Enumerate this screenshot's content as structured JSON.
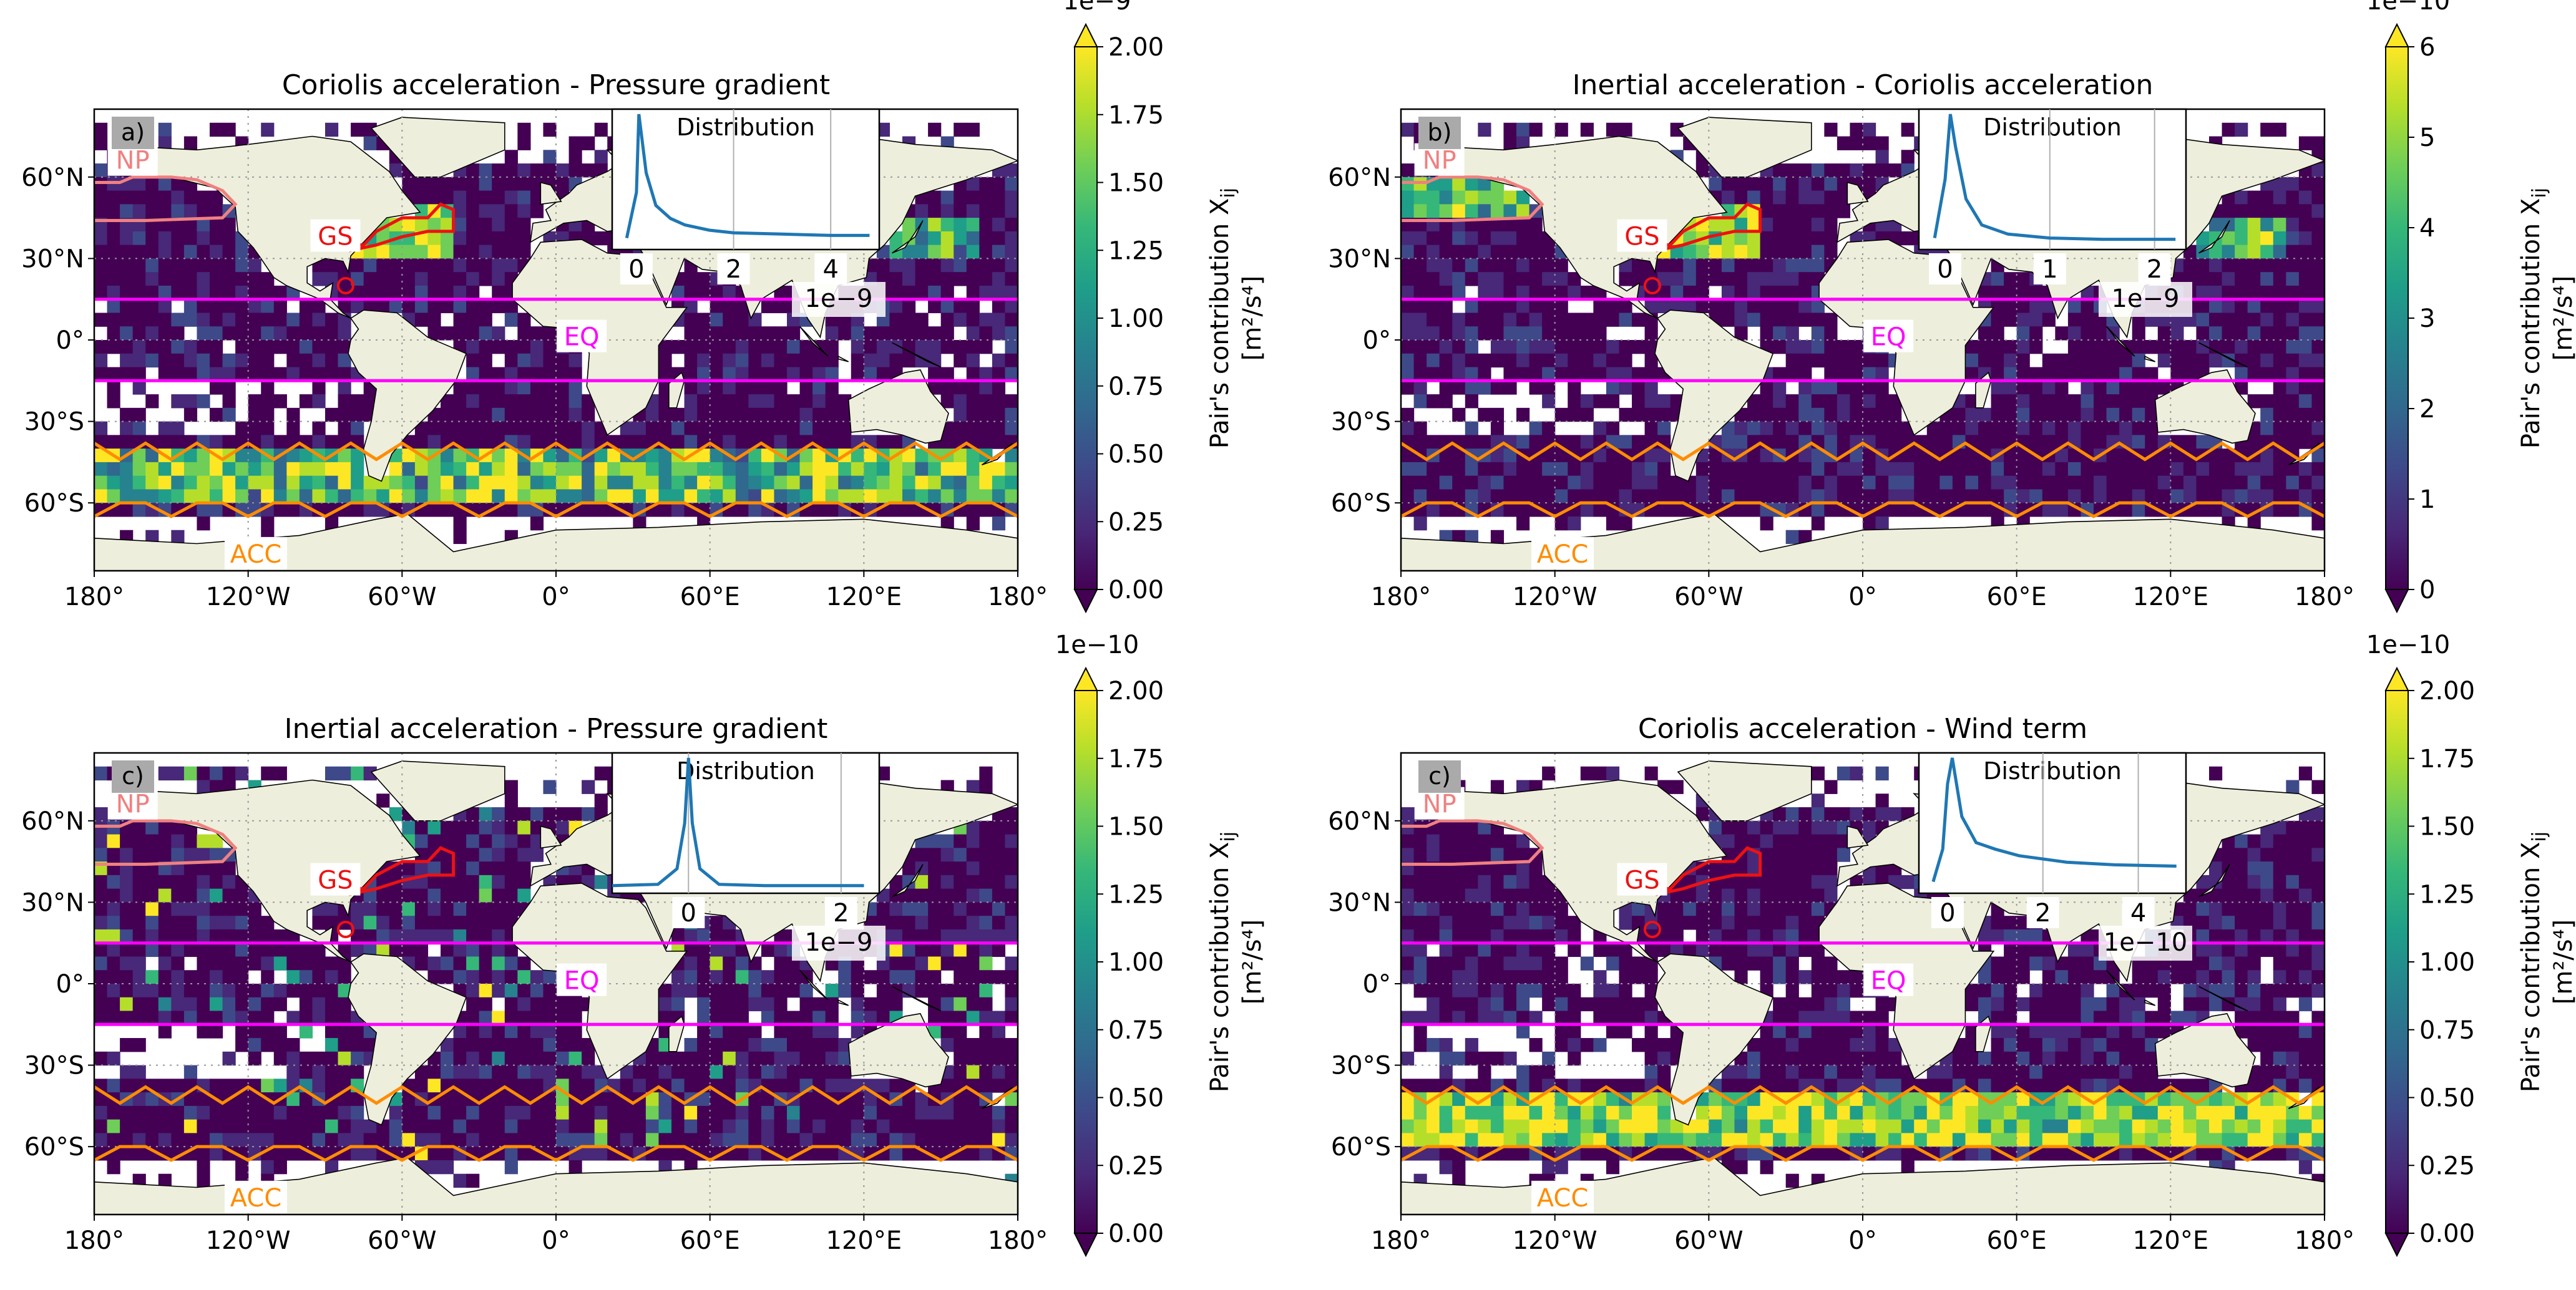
{
  "figure": {
    "colors": {
      "land": "#eeeedc",
      "ocean_empty": "#ffffff",
      "coast": "#000000",
      "grid": "#999999",
      "np_contour": "#f08080",
      "gs_contour": "#ee1111",
      "eq_lines": "#ff00ff",
      "acc_contour": "#ff8c00",
      "inset_line": "#1f77b4",
      "viridis": [
        "#440154",
        "#482878",
        "#3e4989",
        "#31688e",
        "#26828e",
        "#1f9e89",
        "#35b779",
        "#6ece58",
        "#b5de2b",
        "#fde725"
      ]
    },
    "region_labels": {
      "np": "NP",
      "gs": "GS",
      "eq": "EQ",
      "acc": "ACC"
    },
    "lon_ticks": [
      "180°",
      "120°W",
      "60°W",
      "0°",
      "60°E",
      "120°E",
      "180°"
    ],
    "lat_ticks": [
      "60°N",
      "30°N",
      "0°",
      "30°S",
      "60°S"
    ],
    "inset_title": "Distribution",
    "colorbar_label": "Pair's contribution X",
    "colorbar_label_sub": "ij",
    "colorbar_units": "[m²/s⁴]"
  },
  "chart_data": [
    {
      "type": "heatmap",
      "title": "Coriolis acceleration - Pressure gradient",
      "panel_label": "a)",
      "colorbar": {
        "ticks": [
          "0.00",
          "0.25",
          "0.50",
          "0.75",
          "1.00",
          "1.25",
          "1.50",
          "1.75",
          "2.00"
        ],
        "range": [
          0,
          2.0
        ],
        "exponent": "1e−9",
        "extend": "both"
      },
      "field_hotspots": [
        "gs",
        "acc",
        "kuroshio"
      ],
      "seed": 11,
      "inset": {
        "xticks": [
          "0",
          "2",
          "4"
        ],
        "xrange": [
          -0.5,
          5.0
        ],
        "multiplier": "1e−9",
        "gridlines_at": [
          2,
          4
        ],
        "curve": [
          [
            -0.2,
            0.05
          ],
          [
            0.0,
            0.4
          ],
          [
            0.05,
            1.0
          ],
          [
            0.2,
            0.55
          ],
          [
            0.4,
            0.3
          ],
          [
            0.7,
            0.2
          ],
          [
            1.0,
            0.15
          ],
          [
            1.5,
            0.11
          ],
          [
            2,
            0.09
          ],
          [
            3,
            0.08
          ],
          [
            4,
            0.07
          ],
          [
            4.8,
            0.07
          ]
        ]
      }
    },
    {
      "type": "heatmap",
      "title": "Inertial acceleration - Coriolis acceleration",
      "panel_label": "b)",
      "colorbar": {
        "ticks": [
          "0",
          "1",
          "2",
          "3",
          "4",
          "5",
          "6"
        ],
        "range": [
          0,
          6
        ],
        "exponent": "1e−10",
        "extend": "both"
      },
      "field_hotspots": [
        "gs",
        "np",
        "kuroshio"
      ],
      "seed": 23,
      "inset": {
        "xticks": [
          "0",
          "1",
          "2"
        ],
        "xrange": [
          -0.25,
          2.3
        ],
        "multiplier": "1e−9",
        "gridlines_at": [
          1,
          2
        ],
        "curve": [
          [
            -0.1,
            0.05
          ],
          [
            0.0,
            0.5
          ],
          [
            0.05,
            1.0
          ],
          [
            0.1,
            0.75
          ],
          [
            0.2,
            0.35
          ],
          [
            0.35,
            0.15
          ],
          [
            0.6,
            0.08
          ],
          [
            1.0,
            0.05
          ],
          [
            1.5,
            0.04
          ],
          [
            2.2,
            0.04
          ]
        ]
      }
    },
    {
      "type": "heatmap",
      "title": "Inertial acceleration - Pressure gradient",
      "panel_label": "c)",
      "colorbar": {
        "ticks": [
          "0.00",
          "0.25",
          "0.50",
          "0.75",
          "1.00",
          "1.25",
          "1.50",
          "1.75",
          "2.00"
        ],
        "range": [
          0,
          2.0
        ],
        "exponent": "1e−10",
        "extend": "both"
      },
      "field_hotspots": [
        "scattered"
      ],
      "seed": 37,
      "inset": {
        "xticks": [
          "0",
          "2"
        ],
        "xrange": [
          -1.0,
          2.5
        ],
        "multiplier": "1e−9",
        "gridlines_at": [
          0,
          2
        ],
        "curve": [
          [
            -1.0,
            0.02
          ],
          [
            -0.4,
            0.03
          ],
          [
            -0.15,
            0.15
          ],
          [
            -0.05,
            0.5
          ],
          [
            0.0,
            1.0
          ],
          [
            0.05,
            0.5
          ],
          [
            0.15,
            0.15
          ],
          [
            0.4,
            0.03
          ],
          [
            1.0,
            0.02
          ],
          [
            2.3,
            0.02
          ]
        ]
      }
    },
    {
      "type": "heatmap",
      "title": "Coriolis acceleration - Wind term",
      "panel_label": "c)",
      "colorbar": {
        "ticks": [
          "0.00",
          "0.25",
          "0.50",
          "0.75",
          "1.00",
          "1.25",
          "1.50",
          "1.75",
          "2.00"
        ],
        "range": [
          0,
          2.0
        ],
        "exponent": "1e−10",
        "extend": "both"
      },
      "field_hotspots": [
        "acc_strong"
      ],
      "seed": 53,
      "inset": {
        "xticks": [
          "0",
          "2",
          "4"
        ],
        "xrange": [
          -0.6,
          5.0
        ],
        "multiplier": "1e−10",
        "gridlines_at": [
          2,
          4
        ],
        "curve": [
          [
            -0.3,
            0.05
          ],
          [
            -0.1,
            0.3
          ],
          [
            0.0,
            0.8
          ],
          [
            0.1,
            1.0
          ],
          [
            0.3,
            0.55
          ],
          [
            0.6,
            0.35
          ],
          [
            1.0,
            0.3
          ],
          [
            1.5,
            0.25
          ],
          [
            2.5,
            0.2
          ],
          [
            3.5,
            0.18
          ],
          [
            4.8,
            0.17
          ]
        ]
      }
    }
  ]
}
